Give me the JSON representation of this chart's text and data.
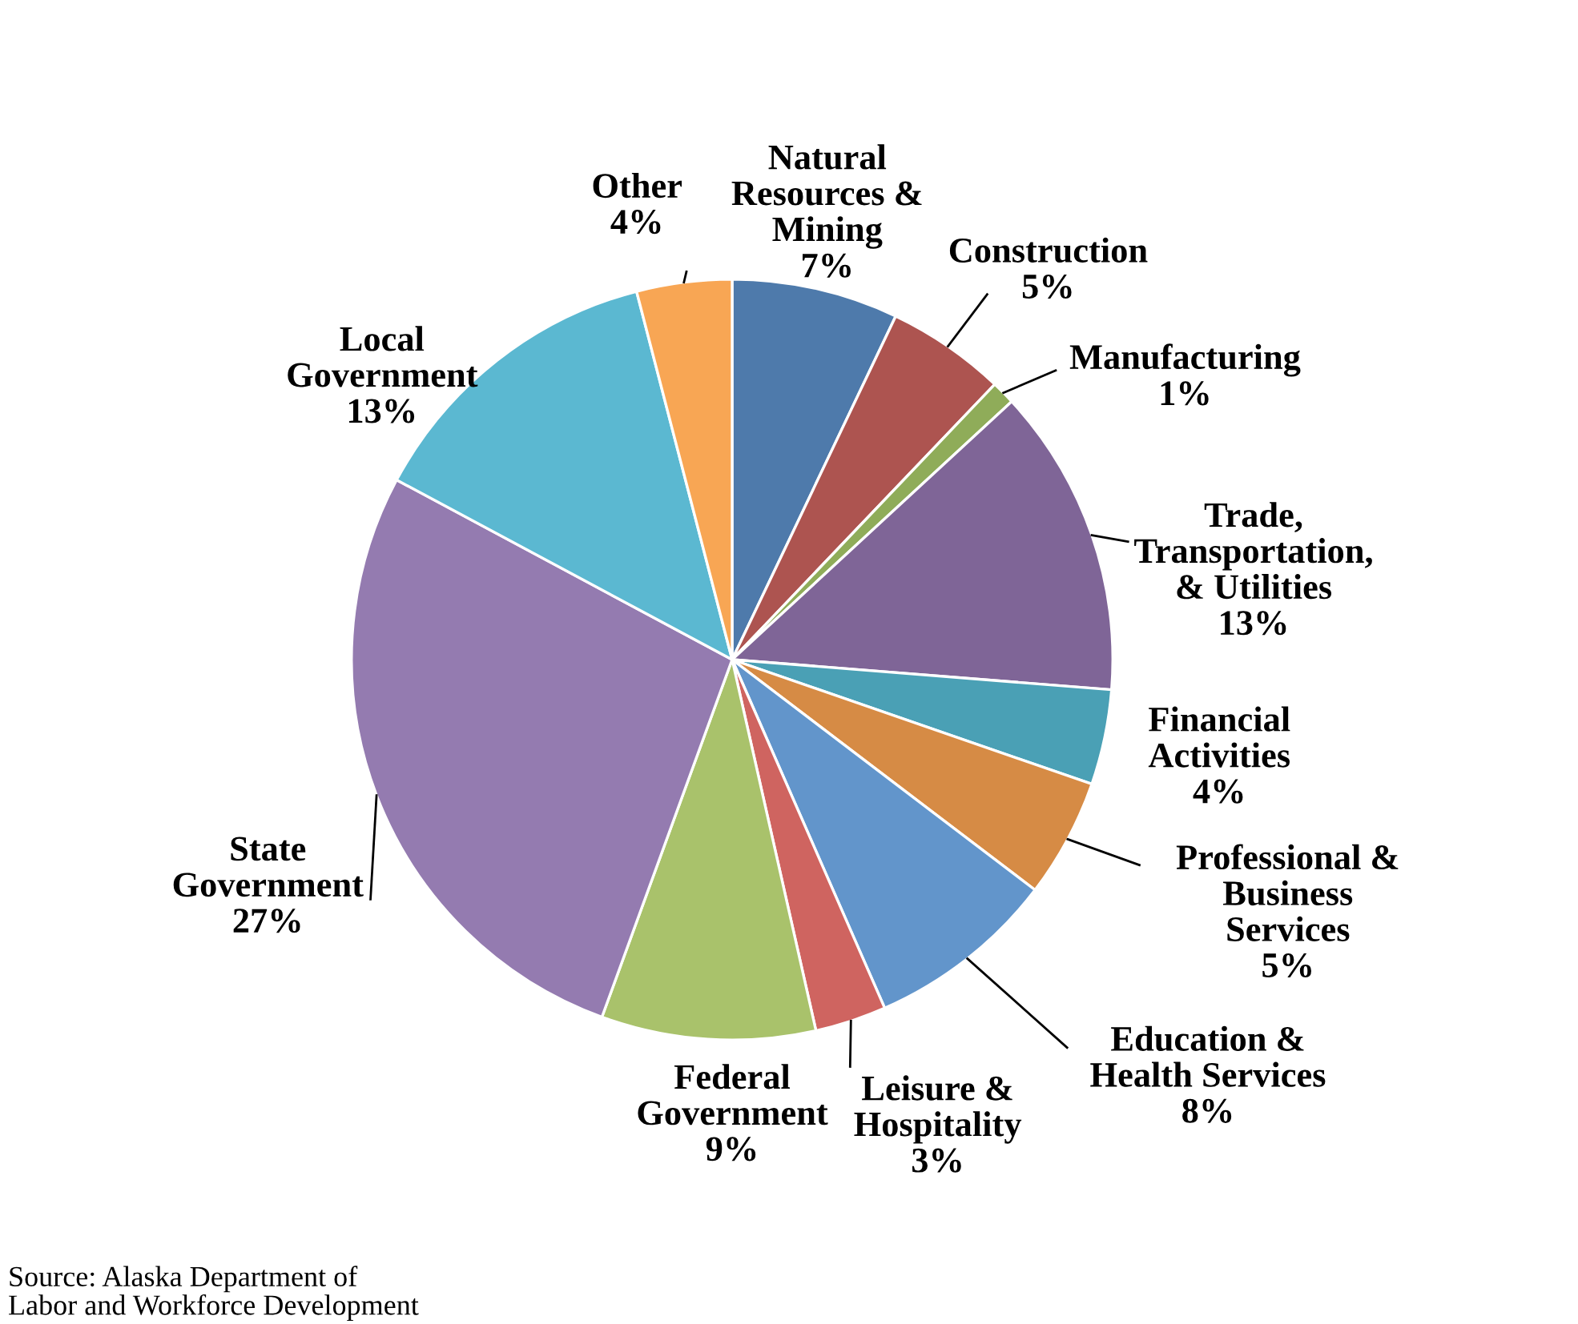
{
  "chart_data": {
    "type": "pie",
    "categories": [
      "Natural\nResources &\nMining",
      "Construction",
      "Manufacturing",
      "Trade,\nTransportation,\n& Utilities",
      "Financial\nActivities",
      "Professional &\nBusiness\nServices",
      "Education &\nHealth Services",
      "Leisure &\nHospitality",
      "Federal\nGovernment",
      "State\nGovernment",
      "Local\nGovernment",
      "Other"
    ],
    "values": [
      7,
      5,
      1,
      13,
      4,
      5,
      8,
      3,
      9,
      27,
      13,
      4
    ],
    "value_labels": [
      "7%",
      "5%",
      "1%",
      "13%",
      "4%",
      "5%",
      "8%",
      "3%",
      "9%",
      "27%",
      "13%",
      "4%"
    ],
    "colors": [
      "#4e7aab",
      "#ad5450",
      "#8fac59",
      "#7f6597",
      "#4aa0b5",
      "#d68b45",
      "#6295cb",
      "#cf6460",
      "#a9c26b",
      "#947bb0",
      "#5bb8d1",
      "#f8a654"
    ],
    "annotations": [
      "Source: Alaska Department of\nLabor and Workforce Development"
    ]
  }
}
